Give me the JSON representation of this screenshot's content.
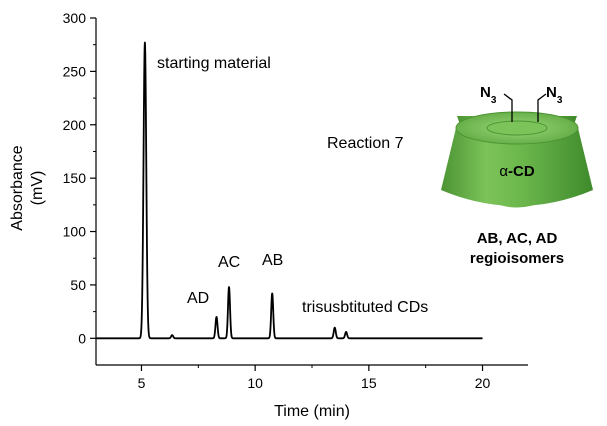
{
  "chart_data": {
    "type": "line",
    "title": "",
    "xlabel": "Time (min)",
    "ylabel_line1": "Absorbance",
    "ylabel_line2": "(mV)",
    "xlim": [
      3,
      22
    ],
    "ylim": [
      -25,
      300
    ],
    "xticks": [
      5,
      10,
      15,
      20
    ],
    "yticks": [
      0,
      50,
      100,
      150,
      200,
      250,
      300
    ],
    "baseline": {
      "x_start": 3,
      "x_end": 20,
      "y": 0
    },
    "peaks": [
      {
        "label": "starting material",
        "time": 5.15,
        "height": 277
      },
      {
        "label": "",
        "time": 6.35,
        "height": 3
      },
      {
        "label": "AD",
        "time": 8.3,
        "height": 20
      },
      {
        "label": "AC",
        "time": 8.85,
        "height": 48
      },
      {
        "label": "AB",
        "time": 10.75,
        "height": 42
      },
      {
        "label": "trisusbtituted CDs",
        "time": 13.5,
        "height": 10
      },
      {
        "label": "",
        "time": 14.0,
        "height": 6
      }
    ],
    "annotations": {
      "starting_material": "starting material",
      "reaction": "Reaction 7",
      "ad": "AD",
      "ac": "AC",
      "ab": "AB",
      "tri": "trisusbtituted CDs"
    }
  },
  "molecule": {
    "name_prefix": "α",
    "name_suffix": "-CD",
    "azide_left_main": "N",
    "azide_left_sub": "3",
    "azide_right_main": "N",
    "azide_right_sub": "3",
    "caption_line1": "AB, AC, AD",
    "caption_line2": "regioisomers",
    "color_main": "#66b04a",
    "color_dark": "#3f8a2c",
    "color_light": "#8fd06b"
  }
}
